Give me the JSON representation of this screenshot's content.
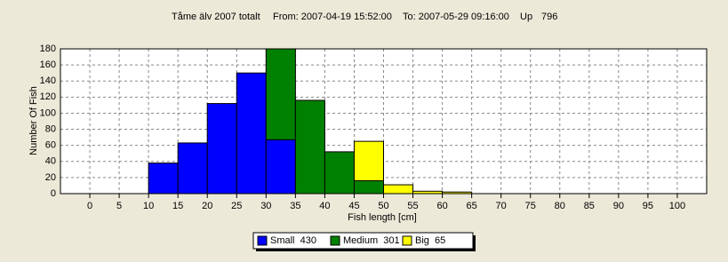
{
  "chart_data": {
    "type": "histogram",
    "title": "Tåme älv 2007 totalt",
    "from": "From: 2007-04-19 15:52:00",
    "to": "To: 2007-05-29 09:16:00",
    "up": "Up",
    "up_value": 796,
    "x_label": "Fish length [cm]",
    "y_label": "Number Of Fish",
    "bins": [
      10,
      15,
      20,
      25,
      30,
      35,
      40,
      45,
      50,
      55,
      60,
      65
    ],
    "series": [
      {
        "name": "Small  430",
        "color": "#0000ff",
        "values": [
          38,
          63,
          112,
          150,
          67,
          0,
          0,
          0,
          0,
          0,
          0
        ]
      },
      {
        "name": "Medium  301",
        "color": "#008000",
        "values": [
          0,
          0,
          0,
          0,
          117,
          116,
          52,
          16,
          0,
          0,
          0
        ]
      },
      {
        "name": "Big  65",
        "color": "#ffff00",
        "values": [
          0,
          0,
          0,
          0,
          0,
          0,
          0,
          49,
          11,
          3,
          2
        ]
      }
    ],
    "stacked": true,
    "xlim": [
      -5,
      105
    ],
    "xticks": [
      0,
      5,
      10,
      15,
      20,
      25,
      30,
      35,
      40,
      45,
      50,
      55,
      60,
      65,
      70,
      75,
      80,
      85,
      90,
      95,
      100
    ],
    "ylim": [
      0,
      180
    ],
    "yticks": [
      0,
      20,
      40,
      60,
      80,
      100,
      120,
      140,
      160,
      180
    ],
    "grid": true,
    "legend": "bottom"
  }
}
